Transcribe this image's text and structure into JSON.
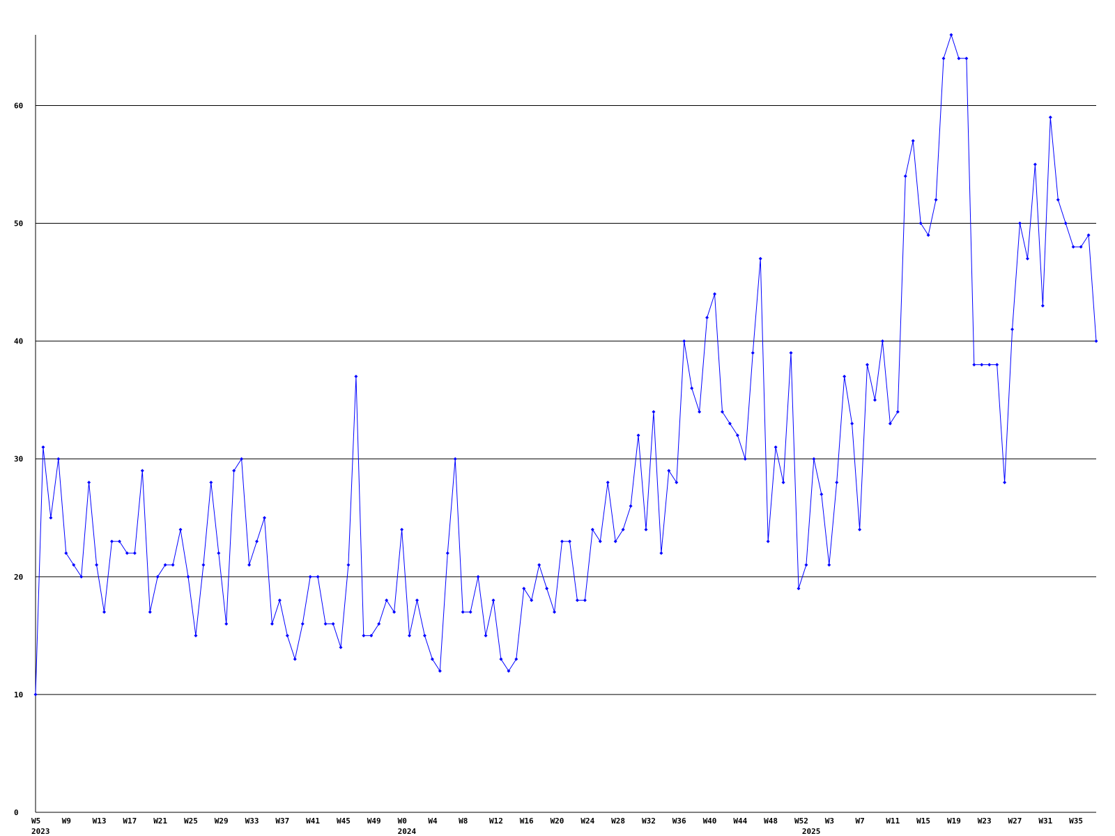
{
  "chart_data": {
    "type": "line",
    "categories": [
      "W5",
      null,
      null,
      null,
      "W9",
      null,
      null,
      null,
      "W13",
      null,
      null,
      null,
      "W17",
      null,
      null,
      null,
      "W21",
      null,
      null,
      null,
      "W25",
      null,
      null,
      null,
      "W29",
      null,
      null,
      null,
      "W33",
      null,
      null,
      null,
      "W37",
      null,
      null,
      null,
      "W41",
      null,
      null,
      null,
      "W45",
      null,
      null,
      null,
      "W49",
      null,
      null,
      null,
      "W0",
      null,
      null,
      null,
      "W4",
      null,
      null,
      null,
      "W8",
      null,
      null,
      null,
      "W12",
      null,
      null,
      null,
      "W16",
      null,
      null,
      null,
      "W20",
      null,
      null,
      null,
      "W24",
      null,
      null,
      null,
      "W28",
      null,
      null,
      null,
      "W32",
      null,
      null,
      null,
      "W36",
      null,
      null,
      null,
      "W40",
      null,
      null,
      null,
      "W44",
      null,
      null,
      null,
      "W48",
      null,
      null,
      null,
      "W52",
      null,
      null,
      null,
      "W3",
      null,
      null,
      null,
      "W7",
      null,
      null,
      null,
      "W11",
      null,
      null,
      null,
      "W15",
      null,
      null,
      null,
      "W19",
      null,
      null,
      null,
      "W23",
      null,
      null,
      null,
      "W27",
      null,
      null,
      null,
      "W31",
      null,
      null,
      null,
      "W35",
      null,
      null,
      null
    ],
    "year_categories": [
      "2023",
      null,
      null,
      null,
      null,
      null,
      null,
      null,
      null,
      null,
      null,
      null,
      null,
      null,
      null,
      null,
      null,
      null,
      null,
      null,
      null,
      null,
      null,
      null,
      null,
      null,
      null,
      null,
      null,
      null,
      null,
      null,
      null,
      null,
      null,
      null,
      null,
      null,
      null,
      null,
      null,
      null,
      null,
      null,
      null,
      null,
      null,
      null,
      "2024",
      null,
      null,
      null,
      null,
      null,
      null,
      null,
      null,
      null,
      null,
      null,
      null,
      null,
      null,
      null,
      null,
      null,
      null,
      null,
      null,
      null,
      null,
      null,
      null,
      null,
      null,
      null,
      null,
      null,
      null,
      null,
      null,
      null,
      null,
      null,
      null,
      null,
      null,
      null,
      null,
      null,
      null,
      null,
      null,
      null,
      null,
      null,
      null,
      null,
      null,
      null,
      null,
      "2025",
      null,
      null,
      null,
      null,
      null,
      null,
      null,
      null,
      null,
      null,
      null,
      null,
      null,
      null,
      null,
      null,
      null,
      null,
      null,
      null,
      null,
      null,
      null,
      null,
      null,
      null,
      null,
      null,
      null,
      null,
      null,
      null,
      null,
      null,
      null,
      null,
      null,
      null
    ],
    "series": [
      {
        "color": "#0000ff",
        "values": [
          10,
          31,
          25,
          30,
          22,
          21,
          20,
          28,
          21,
          17,
          23,
          23,
          22,
          22,
          29,
          17,
          20,
          21,
          21,
          24,
          20,
          15,
          21,
          28,
          22,
          16,
          29,
          30,
          21,
          23,
          25,
          16,
          18,
          15,
          13,
          16,
          20,
          20,
          16,
          16,
          14,
          21,
          37,
          15,
          15,
          16,
          18,
          17,
          24,
          15,
          18,
          15,
          13,
          12,
          22,
          30,
          17,
          17,
          20,
          15,
          18,
          13,
          12,
          13,
          19,
          18,
          21,
          19,
          17,
          23,
          23,
          18,
          18,
          24,
          23,
          28,
          23,
          24,
          26,
          32,
          24,
          34,
          22,
          29,
          28,
          40,
          36,
          34,
          42,
          44,
          34,
          33,
          32,
          30,
          39,
          47,
          23,
          31,
          28,
          39,
          19,
          21,
          30,
          27,
          21,
          28,
          37,
          33,
          24,
          38,
          35,
          40,
          33,
          34,
          54,
          57,
          50,
          49,
          52,
          64,
          66,
          64,
          64,
          38,
          38,
          38,
          38,
          28,
          41,
          50,
          47,
          55,
          43,
          59,
          52,
          50,
          48,
          48,
          49,
          40
        ]
      }
    ],
    "ylim": [
      0,
      66
    ],
    "yticks": [
      0,
      10,
      20,
      30,
      40,
      50,
      60
    ],
    "grid": true
  }
}
